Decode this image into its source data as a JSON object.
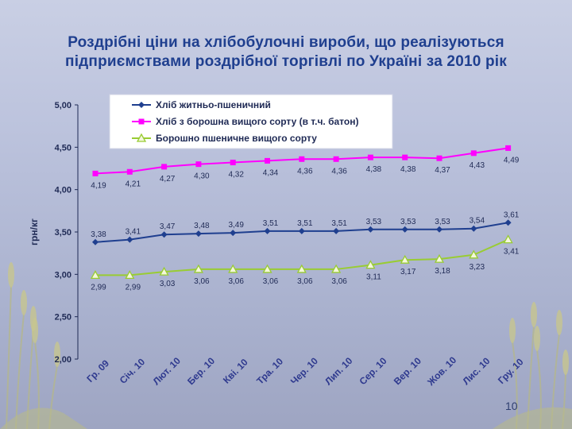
{
  "slide": {
    "title_line1": "Роздрібні ціни на хлібобулочні вироби, що реалізуються",
    "title_line2": "підприємствами роздрібної торгівлі по Україні за 2010 рік",
    "page_number": "10"
  },
  "chart_data": {
    "type": "line",
    "title": "Роздрібні ціни на хлібобулочні вироби, що реалізуються підприємствами роздрібної торгівлі по Україні за 2010 рік",
    "xlabel": "",
    "ylabel": "грн/кг",
    "ylim": [
      2.0,
      5.0
    ],
    "y_ticks": [
      "5,00",
      "4,50",
      "4,00",
      "3,50",
      "3,00",
      "2,50",
      "2,00"
    ],
    "y_tick_values": [
      5.0,
      4.5,
      4.0,
      3.5,
      3.0,
      2.5,
      2.0
    ],
    "categories": [
      "Гр. 09",
      "Січ. 10",
      "Лют. 10",
      "Бер. 10",
      "Кві. 10",
      "Тра. 10",
      "Чер. 10",
      "Лип. 10",
      "Сер. 10",
      "Вер. 10",
      "Жов. 10",
      "Лис. 10",
      "Гру. 10"
    ],
    "legend_position": "top",
    "grid": false,
    "series": [
      {
        "name": "Хліб житньо-пшеничний",
        "color": "#1f3f8f",
        "marker": "diamond",
        "values": [
          3.38,
          3.41,
          3.47,
          3.48,
          3.49,
          3.51,
          3.51,
          3.51,
          3.53,
          3.53,
          3.53,
          3.54,
          3.61
        ],
        "labels": [
          "3,38",
          "3,41",
          "3,47",
          "3,48",
          "3,49",
          "3,51",
          "3,51",
          "3,51",
          "3,53",
          "3,53",
          "3,53",
          "3,54",
          "3,61"
        ],
        "label_placement": "above"
      },
      {
        "name": "Хліб з борошна вищого сорту (в т.ч. батон)",
        "color": "#ff00ff",
        "marker": "square",
        "values": [
          4.19,
          4.21,
          4.27,
          4.3,
          4.32,
          4.34,
          4.36,
          4.36,
          4.38,
          4.38,
          4.37,
          4.43,
          4.49
        ],
        "labels": [
          "4,19",
          "4,21",
          "4,27",
          "4,30",
          "4,32",
          "4,34",
          "4,36",
          "4,36",
          "4,38",
          "4,38",
          "4,37",
          "4,43",
          "4,49"
        ],
        "label_placement": "below"
      },
      {
        "name": "Борошно пшеничне вищого сорту",
        "color": "#99cc33",
        "marker": "triangle",
        "values": [
          2.99,
          2.99,
          3.03,
          3.06,
          3.06,
          3.06,
          3.06,
          3.06,
          3.11,
          3.17,
          3.18,
          3.23,
          3.41
        ],
        "labels": [
          "2,99",
          "2,99",
          "3,03",
          "3,06",
          "3,06",
          "3,06",
          "3,06",
          "3,06",
          "3,11",
          "3,17",
          "3,18",
          "3,23",
          "3,41"
        ],
        "label_placement": "below"
      }
    ]
  }
}
